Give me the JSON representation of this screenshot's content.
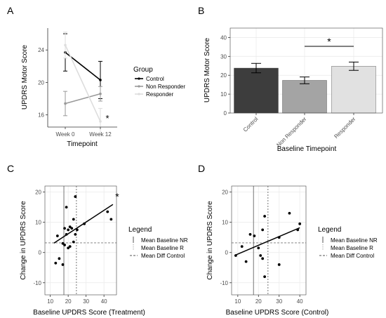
{
  "figure_title": "",
  "chart_data": [
    {
      "panel": "A",
      "type": "line",
      "xlabel": "Timepoint",
      "ylabel": "UPDRS Motor Score",
      "categories": [
        "Week 0",
        "Week 12"
      ],
      "y_ticks": [
        16,
        20,
        24
      ],
      "ylim": [
        14.5,
        26.7
      ],
      "grid": false,
      "legend": {
        "title": "Group",
        "position": "right"
      },
      "annotation": "*",
      "series": [
        {
          "name": "Control",
          "color": "#000000",
          "values": [
            23.7,
            20.3
          ],
          "error": [
            2.3,
            2.3
          ]
        },
        {
          "name": "Non Responder",
          "color": "#999999",
          "values": [
            17.4,
            18.6
          ],
          "error": [
            1.5,
            0.9
          ]
        },
        {
          "name": "Responder",
          "color": "#dddddd",
          "values": [
            24.6,
            15.2
          ],
          "error": [
            1.6,
            1.6
          ]
        }
      ]
    },
    {
      "panel": "B",
      "type": "bar",
      "xlabel": "Baseline Timepoint",
      "ylabel": "UPDRS Motor Score",
      "categories": [
        "Control",
        "Non Responder",
        "Responder"
      ],
      "values": [
        23.8,
        17.3,
        24.8
      ],
      "errors": [
        2.5,
        1.8,
        2.2
      ],
      "colors": [
        "#3d3d3d",
        "#a4a4a4",
        "#e1e1e1"
      ],
      "y_ticks": [
        0,
        10,
        20,
        30,
        40
      ],
      "ylim": [
        0,
        45
      ],
      "grid": true,
      "annotation": "*"
    },
    {
      "panel": "C",
      "type": "scatter",
      "xlabel": "Baseline UPDRS Score (Treatment)",
      "ylabel": "Change in UPDRS Score",
      "x_ticks": [
        10,
        20,
        30,
        40
      ],
      "y_ticks": [
        -10,
        0,
        10,
        20
      ],
      "xlim": [
        7,
        47
      ],
      "ylim": [
        -14,
        22
      ],
      "grid": true,
      "annotation": "*",
      "points": [
        [
          13,
          -3.5
        ],
        [
          14,
          5.5
        ],
        [
          15,
          -2
        ],
        [
          17,
          -4
        ],
        [
          17,
          3
        ],
        [
          18,
          2.5
        ],
        [
          18,
          8
        ],
        [
          19,
          15
        ],
        [
          19,
          6
        ],
        [
          20,
          1.5
        ],
        [
          20,
          7.5
        ],
        [
          21,
          2
        ],
        [
          21,
          8.5
        ],
        [
          22,
          8
        ],
        [
          23,
          3.5
        ],
        [
          23,
          11
        ],
        [
          24,
          18.5
        ],
        [
          24,
          6
        ],
        [
          25,
          7.5
        ],
        [
          29,
          9.5
        ],
        [
          42,
          13.5
        ],
        [
          44,
          11
        ]
      ],
      "fit_line": {
        "x": [
          12,
          45
        ],
        "y": [
          3.1,
          15.9
        ]
      },
      "ref_lines": {
        "mean_baseline_nr": 17.6,
        "mean_baseline_r": 24.6,
        "mean_diff_control": 3.2
      },
      "legend": {
        "title": "Legend",
        "position": "right",
        "items": [
          {
            "label": "Mean Baseline NR",
            "style": "solid",
            "color": "#666666"
          },
          {
            "label": "Mean Baseline R",
            "style": "solid",
            "color": "#aaaaaa"
          },
          {
            "label": "Mean Diff Control",
            "style": "dashed",
            "color": "#333333"
          }
        ]
      }
    },
    {
      "panel": "D",
      "type": "scatter",
      "xlabel": "Baseline UPDRS Score (Control)",
      "ylabel": "Change in UPDRS Score",
      "x_ticks": [
        10,
        20,
        30,
        40
      ],
      "y_ticks": [
        -10,
        0,
        10,
        20
      ],
      "xlim": [
        7,
        43
      ],
      "ylim": [
        -14,
        22
      ],
      "grid": true,
      "points": [
        [
          9,
          -1
        ],
        [
          12,
          2
        ],
        [
          14,
          -3
        ],
        [
          16,
          6
        ],
        [
          18,
          5.5
        ],
        [
          20,
          1.5
        ],
        [
          21,
          -1
        ],
        [
          22,
          7.5
        ],
        [
          22,
          -2
        ],
        [
          23,
          12
        ],
        [
          23,
          -8
        ],
        [
          30,
          5
        ],
        [
          30,
          -4
        ],
        [
          35,
          13
        ],
        [
          39,
          7.5
        ],
        [
          40,
          9.5
        ]
      ],
      "fit_line": {
        "x": [
          9,
          40
        ],
        "y": [
          -0.8,
          8.2
        ]
      },
      "ref_lines": {
        "mean_baseline_nr": 17.6,
        "mean_baseline_r": 24.6,
        "mean_diff_control": 3.2
      },
      "legend": {
        "title": "Legend",
        "position": "right",
        "items": [
          {
            "label": "Mean Baseline NR",
            "style": "solid",
            "color": "#666666"
          },
          {
            "label": "Mean Baseline R",
            "style": "solid",
            "color": "#aaaaaa"
          },
          {
            "label": "Mean Diff Control",
            "style": "dashed",
            "color": "#333333"
          }
        ]
      }
    }
  ]
}
